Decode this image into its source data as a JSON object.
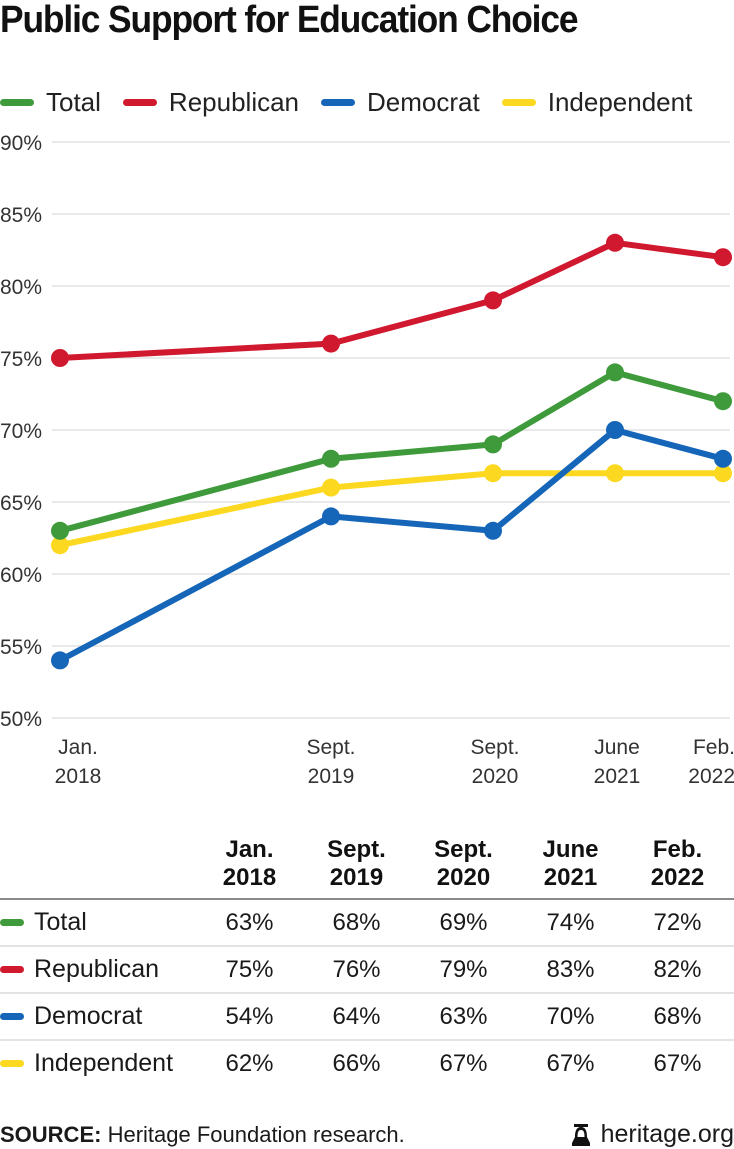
{
  "chart_data": {
    "type": "line",
    "title": "Public Support for Education Choice",
    "xlabel": "",
    "ylabel": "",
    "categories": [
      "Jan. 2018",
      "Sept. 2019",
      "Sept. 2020",
      "June 2021",
      "Feb. 2022"
    ],
    "category_lines": [
      [
        "Jan.",
        "2018"
      ],
      [
        "Sept.",
        "2019"
      ],
      [
        "Sept.",
        "2020"
      ],
      [
        "June",
        "2021"
      ],
      [
        "Feb.",
        "2022"
      ]
    ],
    "ylim": [
      50,
      90
    ],
    "yticks": [
      50,
      55,
      60,
      65,
      70,
      75,
      80,
      85,
      90
    ],
    "ytick_labels": [
      "50%",
      "55%",
      "60%",
      "65%",
      "70%",
      "75%",
      "80%",
      "85%",
      "90%"
    ],
    "grid": true,
    "legend_position": "top",
    "series": [
      {
        "name": "Total",
        "color": "#3e9a3a",
        "values": [
          63,
          68,
          69,
          74,
          72
        ]
      },
      {
        "name": "Republican",
        "color": "#d0182f",
        "values": [
          75,
          76,
          79,
          83,
          82
        ]
      },
      {
        "name": "Democrat",
        "color": "#1565b8",
        "values": [
          54,
          64,
          63,
          70,
          68
        ]
      },
      {
        "name": "Independent",
        "color": "#fcd820",
        "values": [
          62,
          66,
          67,
          67,
          67
        ]
      }
    ]
  },
  "legend": {
    "items": [
      {
        "label": "Total",
        "color": "#3e9a3a"
      },
      {
        "label": "Republican",
        "color": "#d0182f"
      },
      {
        "label": "Democrat",
        "color": "#1565b8"
      },
      {
        "label": "Independent",
        "color": "#fcd820"
      }
    ]
  },
  "table": {
    "headers": [
      [
        "Jan.",
        "2018"
      ],
      [
        "Sept.",
        "2019"
      ],
      [
        "Sept.",
        "2020"
      ],
      [
        "June",
        "2021"
      ],
      [
        "Feb.",
        "2022"
      ]
    ],
    "rows": [
      {
        "label": "Total",
        "color": "#3e9a3a",
        "cells": [
          "63%",
          "68%",
          "69%",
          "74%",
          "72%"
        ]
      },
      {
        "label": "Republican",
        "color": "#d0182f",
        "cells": [
          "75%",
          "76%",
          "79%",
          "83%",
          "82%"
        ]
      },
      {
        "label": "Democrat",
        "color": "#1565b8",
        "cells": [
          "54%",
          "64%",
          "63%",
          "70%",
          "68%"
        ]
      },
      {
        "label": "Independent",
        "color": "#fcd820",
        "cells": [
          "62%",
          "66%",
          "67%",
          "67%",
          "67%"
        ]
      }
    ]
  },
  "footer": {
    "source_label": "SOURCE:",
    "source_text": " Heritage Foundation research.",
    "brand": "heritage.org",
    "brand_icon": "liberty-bell-icon"
  }
}
